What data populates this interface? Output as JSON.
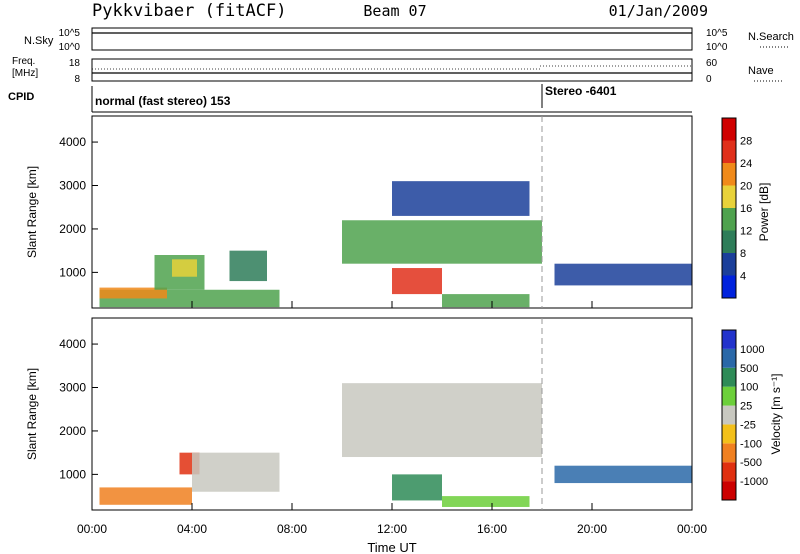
{
  "header": {
    "station": "Pykkvibaer (fitACF)",
    "beam": "Beam 07",
    "date": "01/Jan/2009"
  },
  "nsky_panel": {
    "left_label": "N.Sky",
    "right_label": "N.Search",
    "left_ticks": [
      "10^5",
      "10^0"
    ],
    "right_ticks": [
      "10^5",
      "10^0"
    ]
  },
  "freq_panel": {
    "left_label_1": "Freq.",
    "left_label_2": "[MHz]",
    "right_label": "Nave",
    "left_ticks": [
      "18",
      "8"
    ],
    "right_ticks": [
      "60",
      "0"
    ]
  },
  "cpid_panel": {
    "label": "CPID",
    "mode_1": "normal (fast stereo) 153",
    "mode_2": "Stereo -6401",
    "switch_time_hours": 18.0
  },
  "time_axis": {
    "xlabel": "Time UT",
    "ticks": [
      "00:00",
      "04:00",
      "08:00",
      "12:00",
      "16:00",
      "20:00",
      "00:00"
    ],
    "tick_hours": [
      0,
      4,
      8,
      12,
      16,
      20,
      24
    ]
  },
  "power_panel": {
    "ylabel": "Slant Range [km]",
    "yticks": [
      "1000",
      "2000",
      "3000",
      "4000"
    ],
    "ytick_values": [
      1000,
      2000,
      3000,
      4000
    ],
    "colorbar_label": "Power [dB]",
    "colorbar_ticks": [
      "4",
      "8",
      "12",
      "16",
      "20",
      "24",
      "28"
    ],
    "colors": [
      "#0022dd",
      "#1b3f9a",
      "#2e7d59",
      "#4fa24e",
      "#e8d23a",
      "#f08a1a",
      "#e0301b",
      "#d00000"
    ]
  },
  "velocity_panel": {
    "ylabel": "Slant Range [km]",
    "yticks": [
      "1000",
      "2000",
      "3000",
      "4000"
    ],
    "ytick_values": [
      1000,
      2000,
      3000,
      4000
    ],
    "colorbar_label": "Velocity [m s⁻¹]",
    "colorbar_ticks": [
      "1000",
      "500",
      "100",
      "25",
      "-25",
      "-100",
      "-500",
      "-1000"
    ],
    "colors": [
      "#2233cc",
      "#2a68a8",
      "#2e8b57",
      "#6ccf3a",
      "#c8c8c0",
      "#f3c01a",
      "#f08020",
      "#e03010",
      "#cc0000"
    ]
  },
  "chart_data": {
    "type": "heatmap",
    "x_unit": "hours UT",
    "x_range": [
      0,
      24
    ],
    "y_range": [
      180,
      4600
    ],
    "power_regions": [
      {
        "t0": 0.3,
        "t1": 7.5,
        "r0": 200,
        "r1": 600,
        "level": 3
      },
      {
        "t0": 0.3,
        "t1": 3.0,
        "r0": 400,
        "r1": 650,
        "level": 5
      },
      {
        "t0": 2.5,
        "t1": 4.5,
        "r0": 600,
        "r1": 1400,
        "level": 3
      },
      {
        "t0": 3.2,
        "t1": 4.2,
        "r0": 900,
        "r1": 1300,
        "level": 4
      },
      {
        "t0": 5.5,
        "t1": 7.0,
        "r0": 800,
        "r1": 1500,
        "level": 2
      },
      {
        "t0": 10.0,
        "t1": 18.0,
        "r0": 1200,
        "r1": 2200,
        "level": 3
      },
      {
        "t0": 12.0,
        "t1": 14.0,
        "r0": 500,
        "r1": 1100,
        "level": 6
      },
      {
        "t0": 12.0,
        "t1": 17.5,
        "r0": 2300,
        "r1": 3100,
        "level": 1
      },
      {
        "t0": 14.0,
        "t1": 17.5,
        "r0": 200,
        "r1": 500,
        "level": 3
      },
      {
        "t0": 18.5,
        "t1": 24.0,
        "r0": 700,
        "r1": 1200,
        "level": 1
      }
    ],
    "velocity_regions": [
      {
        "t0": 0.3,
        "t1": 4.0,
        "r0": 300,
        "r1": 700,
        "level": 6
      },
      {
        "t0": 3.5,
        "t1": 4.3,
        "r0": 1000,
        "r1": 1500,
        "level": 7
      },
      {
        "t0": 4.0,
        "t1": 7.5,
        "r0": 600,
        "r1": 1500,
        "level": 4
      },
      {
        "t0": 10.0,
        "t1": 18.0,
        "r0": 1400,
        "r1": 3100,
        "level": 4
      },
      {
        "t0": 12.0,
        "t1": 14.0,
        "r0": 400,
        "r1": 1000,
        "level": 2
      },
      {
        "t0": 14.0,
        "t1": 17.5,
        "r0": 250,
        "r1": 500,
        "level": 3
      },
      {
        "t0": 18.5,
        "t1": 24.0,
        "r0": 800,
        "r1": 1200,
        "level": 1
      }
    ]
  }
}
